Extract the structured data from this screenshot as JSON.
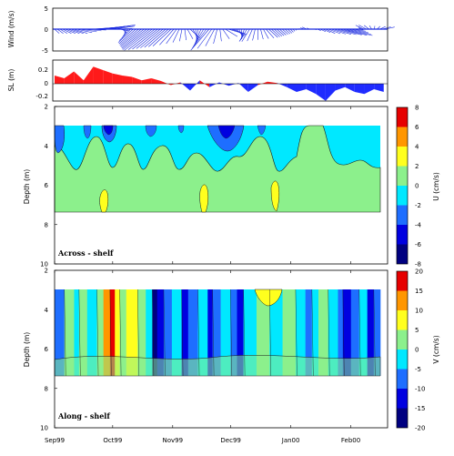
{
  "chart_data": [
    {
      "type": "line",
      "title": "",
      "ylabel": "Wind (m/s)",
      "ylim": [
        -5,
        5
      ],
      "yticks": [
        -5,
        0,
        5
      ],
      "style": "stick plot of daily wind vectors",
      "x_range": [
        "1999-09-01",
        "2000-02-20"
      ],
      "x_ticks": [
        "Sep99",
        "Oct99",
        "Nov99",
        "Dec99",
        "Jan00",
        "Feb00"
      ],
      "x_tick_dates": [
        "1999-09-01",
        "1999-10-01",
        "1999-11-01",
        "1999-12-01",
        "2000-01-01",
        "2000-02-01"
      ],
      "series": [
        {
          "x": [
            "1999-09-01",
            "1999-09-11",
            "1999-09-21",
            "1999-10-01",
            "1999-10-11",
            "1999-10-21",
            "1999-10-31",
            "1999-11-10",
            "1999-11-20",
            "1999-11-30",
            "1999-12-10",
            "1999-12-20",
            "1999-12-30",
            "2000-01-09",
            "2000-01-19",
            "2000-01-29",
            "2000-02-08",
            "2000-02-18"
          ],
          "u": [
            0.5,
            1.5,
            3.0,
            2.5,
            -1.5,
            -3.0,
            -2.0,
            1.0,
            -2.0,
            2.0,
            -1.0,
            1.0,
            0.5,
            -0.5,
            1.0,
            3.0,
            -1.0,
            1.0
          ],
          "v": [
            -1.0,
            -1.0,
            0.5,
            1.0,
            -3.0,
            -5.0,
            -4.0,
            -2.0,
            -5.0,
            -1.0,
            -3.0,
            -2.0,
            -1.0,
            0.5,
            -1.0,
            -1.5,
            1.0,
            0.5
          ]
        }
      ]
    },
    {
      "type": "area",
      "ylabel": "SL (m)",
      "ylim": [
        -0.3,
        0.3
      ],
      "yticks": [
        -0.2,
        0.0,
        0.2
      ],
      "colors": {
        "positive": "#ff1a1a",
        "negative": "#1f2bff"
      },
      "series": [
        {
          "x": [
            "1999-09-01",
            "1999-09-06",
            "1999-09-11",
            "1999-09-16",
            "1999-09-21",
            "1999-09-26",
            "1999-10-01",
            "1999-10-06",
            "1999-10-11",
            "1999-10-16",
            "1999-10-21",
            "1999-10-26",
            "1999-10-31",
            "1999-11-05",
            "1999-11-10",
            "1999-11-15",
            "1999-11-20",
            "1999-11-25",
            "1999-11-30",
            "1999-12-05",
            "1999-12-10",
            "1999-12-15",
            "1999-12-20",
            "1999-12-25",
            "1999-12-30",
            "2000-01-04",
            "2000-01-09",
            "2000-01-14",
            "2000-01-19",
            "2000-01-24",
            "2000-01-29",
            "2000-02-03",
            "2000-02-08",
            "2000-02-13",
            "2000-02-18"
          ],
          "values": [
            0.12,
            0.08,
            0.18,
            0.05,
            0.25,
            0.2,
            0.15,
            0.12,
            0.1,
            0.05,
            0.08,
            0.04,
            -0.02,
            0.02,
            -0.1,
            0.05,
            -0.05,
            0.02,
            -0.03,
            0.01,
            -0.12,
            -0.02,
            0.03,
            0.01,
            -0.05,
            -0.12,
            -0.08,
            -0.15,
            -0.25,
            -0.1,
            -0.05,
            -0.12,
            -0.15,
            -0.08,
            -0.12
          ]
        }
      ]
    },
    {
      "type": "heatmap",
      "panel_label": "Across - shelf",
      "ylabel": "Depth (m)",
      "ylim": [
        10,
        2
      ],
      "yticks": [
        2,
        4,
        6,
        8,
        10
      ],
      "data_depth_range": [
        2,
        7
      ],
      "colorbar": {
        "label": "U (cm/s)",
        "ticks": [
          -8,
          -6,
          -4,
          -2,
          0,
          2,
          4,
          6,
          8
        ],
        "bands": [
          {
            "range": [
              -8,
              -6
            ],
            "color": "#000080"
          },
          {
            "range": [
              -6,
              -4
            ],
            "color": "#0000e0"
          },
          {
            "range": [
              -4,
              -2
            ],
            "color": "#1e6eff"
          },
          {
            "range": [
              -2,
              0
            ],
            "color": "#00e8ff"
          },
          {
            "range": [
              0,
              2
            ],
            "color": "#8cf08c"
          },
          {
            "range": [
              2,
              4
            ],
            "color": "#ffff1e"
          },
          {
            "range": [
              4,
              6
            ],
            "color": "#ff9600"
          },
          {
            "range": [
              6,
              8
            ],
            "color": "#e60000"
          }
        ]
      }
    },
    {
      "type": "heatmap",
      "panel_label": "Along - shelf",
      "ylabel": "Depth (m)",
      "ylim": [
        10,
        2
      ],
      "yticks": [
        2,
        4,
        6,
        8,
        10
      ],
      "data_depth_range": [
        2,
        7
      ],
      "colorbar": {
        "label": "V (cm/s)",
        "ticks": [
          -20,
          -15,
          -10,
          -5,
          0,
          5,
          10,
          15,
          20
        ],
        "bands": [
          {
            "range": [
              -20,
              -15
            ],
            "color": "#000080"
          },
          {
            "range": [
              -15,
              -10
            ],
            "color": "#0000e0"
          },
          {
            "range": [
              -10,
              -5
            ],
            "color": "#1e6eff"
          },
          {
            "range": [
              -5,
              0
            ],
            "color": "#00e8ff"
          },
          {
            "range": [
              0,
              5
            ],
            "color": "#8cf08c"
          },
          {
            "range": [
              5,
              10
            ],
            "color": "#ffff1e"
          },
          {
            "range": [
              10,
              15
            ],
            "color": "#ff9600"
          },
          {
            "range": [
              15,
              20
            ],
            "color": "#e60000"
          }
        ]
      }
    }
  ]
}
